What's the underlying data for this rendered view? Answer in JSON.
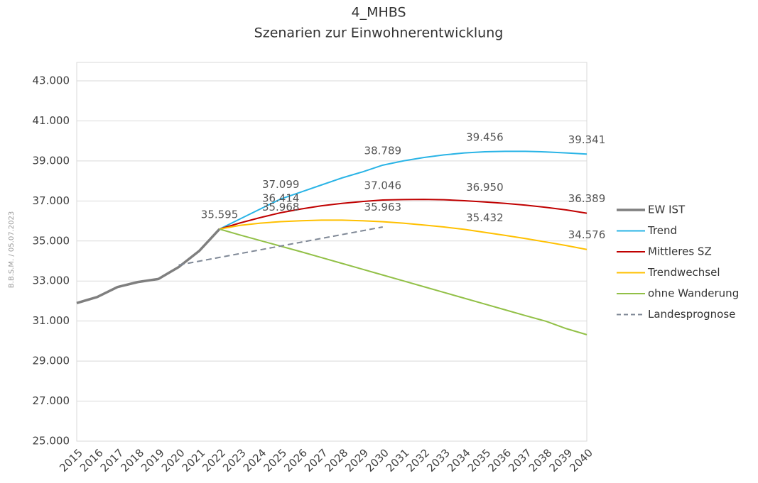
{
  "chart_data": {
    "type": "line",
    "title": "4_MHBS",
    "subtitle": "Szenarien zur Einwohnerentwicklung",
    "annotation": "B.B.S.M. / 05.07.2023",
    "categories": [
      "2015",
      "2016",
      "2017",
      "2018",
      "2019",
      "2020",
      "2021",
      "2022",
      "2023",
      "2024",
      "2025",
      "2026",
      "2027",
      "2028",
      "2029",
      "2030",
      "2031",
      "2032",
      "2033",
      "2034",
      "2035",
      "2036",
      "2037",
      "2038",
      "2039",
      "2040"
    ],
    "ylim": [
      25000,
      43000
    ],
    "yticks": [
      {
        "value": 25000,
        "label": "25.000"
      },
      {
        "value": 27000,
        "label": "27.000"
      },
      {
        "value": 29000,
        "label": "29.000"
      },
      {
        "value": 31000,
        "label": "31.000"
      },
      {
        "value": 33000,
        "label": "33.000"
      },
      {
        "value": 35000,
        "label": "35.000"
      },
      {
        "value": 37000,
        "label": "37.000"
      },
      {
        "value": 39000,
        "label": "39.000"
      },
      {
        "value": 41000,
        "label": "41.000"
      },
      {
        "value": 43000,
        "label": "43.000"
      }
    ],
    "grid": true,
    "legend": "right",
    "series": [
      {
        "name": "EW IST",
        "color": "#7f7f7f",
        "style": "solid",
        "width": 3.5,
        "values": [
          31900,
          32200,
          32700,
          32950,
          33100,
          33700,
          34500,
          35595,
          null,
          null,
          null,
          null,
          null,
          null,
          null,
          null,
          null,
          null,
          null,
          null,
          null,
          null,
          null,
          null,
          null,
          null
        ],
        "value_labels": [
          null,
          null,
          null,
          null,
          null,
          null,
          null,
          "35.595",
          null,
          null,
          null,
          null,
          null,
          null,
          null,
          null,
          null,
          null,
          null,
          null,
          null,
          null,
          null,
          null,
          null,
          null
        ]
      },
      {
        "name": "Trend",
        "color": "#2ab4e6",
        "style": "solid",
        "width": 2,
        "values": [
          null,
          null,
          null,
          null,
          null,
          null,
          null,
          35595,
          36100,
          36600,
          37099,
          37450,
          37800,
          38150,
          38450,
          38789,
          39000,
          39170,
          39300,
          39400,
          39456,
          39480,
          39480,
          39450,
          39400,
          39341
        ],
        "value_labels": [
          null,
          null,
          null,
          null,
          null,
          null,
          null,
          null,
          null,
          null,
          "37.099",
          null,
          null,
          null,
          null,
          "38.789",
          null,
          null,
          null,
          null,
          "39.456",
          null,
          null,
          null,
          null,
          "39.341"
        ]
      },
      {
        "name": "Mittleres SZ",
        "color": "#c00000",
        "style": "solid",
        "width": 2,
        "values": [
          null,
          null,
          null,
          null,
          null,
          null,
          null,
          35595,
          35900,
          36170,
          36414,
          36600,
          36760,
          36880,
          36970,
          37046,
          37070,
          37080,
          37060,
          37010,
          36950,
          36880,
          36790,
          36680,
          36550,
          36389
        ],
        "value_labels": [
          null,
          null,
          null,
          null,
          null,
          null,
          null,
          null,
          null,
          null,
          "36.414",
          null,
          null,
          null,
          null,
          "37.046",
          null,
          null,
          null,
          null,
          "36.950",
          null,
          null,
          null,
          null,
          "36.389"
        ]
      },
      {
        "name": "Trendwechsel",
        "color": "#ffc000",
        "style": "solid",
        "width": 2,
        "values": [
          null,
          null,
          null,
          null,
          null,
          null,
          null,
          35595,
          35780,
          35890,
          35968,
          36010,
          36040,
          36040,
          36010,
          35963,
          35890,
          35800,
          35700,
          35580,
          35432,
          35280,
          35120,
          34950,
          34770,
          34576
        ],
        "value_labels": [
          null,
          null,
          null,
          null,
          null,
          null,
          null,
          null,
          null,
          null,
          "35.968",
          null,
          null,
          null,
          null,
          "35.963",
          null,
          null,
          null,
          null,
          "35.432",
          null,
          null,
          null,
          null,
          "34.576"
        ]
      },
      {
        "name": "ohne Wanderung",
        "color": "#92c047",
        "style": "solid",
        "width": 2,
        "values": [
          null,
          null,
          null,
          null,
          null,
          null,
          null,
          35595,
          35300,
          35020,
          34740,
          34460,
          34170,
          33880,
          33590,
          33300,
          33010,
          32720,
          32430,
          32140,
          31850,
          31560,
          31270,
          30990,
          30620,
          30320
        ]
      },
      {
        "name": "Landesprognose",
        "color": "#7f8896",
        "style": "dashed",
        "width": 2,
        "values": [
          null,
          null,
          null,
          null,
          null,
          33800,
          33990,
          34180,
          34370,
          34560,
          34750,
          34940,
          35130,
          35320,
          35510,
          35700,
          null,
          null,
          null,
          null,
          null,
          null,
          null,
          null,
          null,
          null
        ]
      }
    ]
  }
}
